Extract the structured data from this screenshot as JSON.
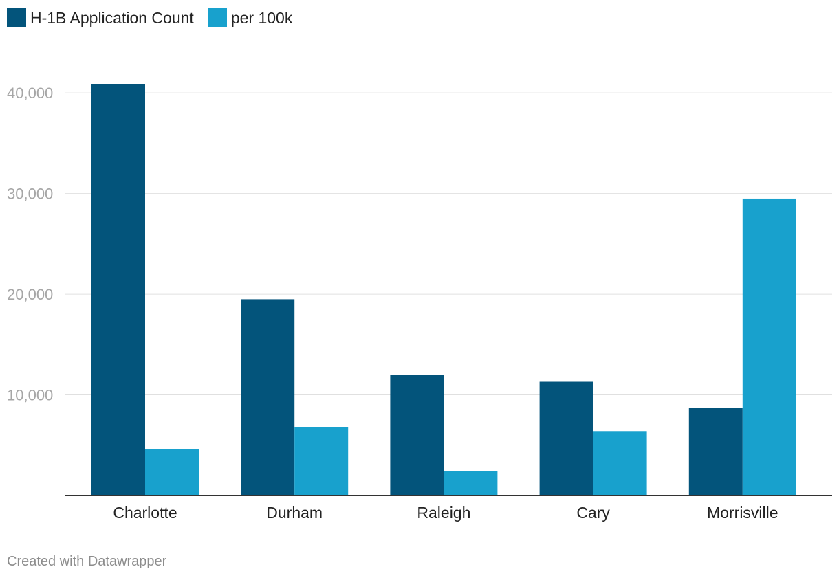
{
  "chart_data": {
    "type": "bar",
    "categories": [
      "Charlotte",
      "Durham",
      "Raleigh",
      "Cary",
      "Morrisville"
    ],
    "series": [
      {
        "name": "H-1B Application Count",
        "color": "#03547b",
        "values": [
          40900,
          19500,
          12000,
          11300,
          8700
        ]
      },
      {
        "name": "per 100k",
        "color": "#18a1cd",
        "values": [
          4600,
          6800,
          2400,
          6400,
          29500
        ]
      }
    ],
    "yticks": [
      "10,000",
      "20,000",
      "30,000",
      "40,000"
    ],
    "ytick_values": [
      10000,
      20000,
      30000,
      40000
    ],
    "ylim": [
      0,
      40900
    ],
    "grid": true,
    "legend": "top-left"
  },
  "footer": "Created with Datawrapper"
}
